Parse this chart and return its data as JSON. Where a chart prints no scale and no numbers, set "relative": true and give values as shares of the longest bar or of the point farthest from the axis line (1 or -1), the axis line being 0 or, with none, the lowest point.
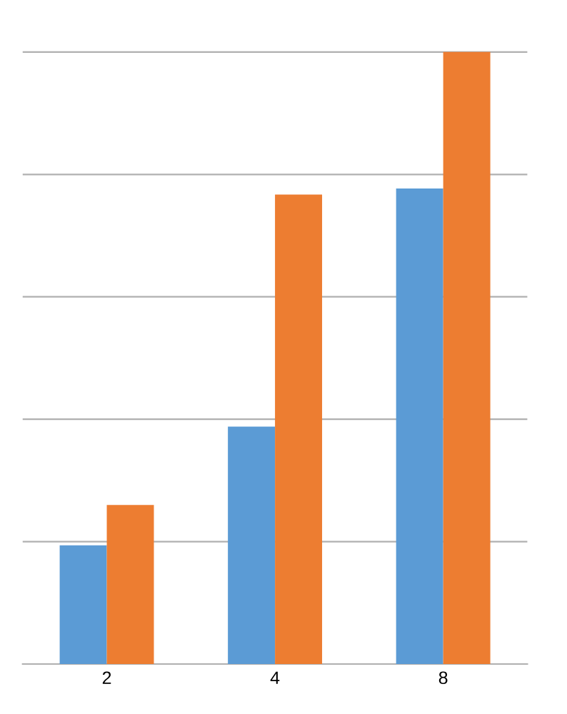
{
  "chart_data": {
    "type": "bar",
    "relative": true,
    "categories": [
      "2",
      "4",
      "8"
    ],
    "series": [
      {
        "color": "#5b9bd5",
        "values": [
          0.194,
          0.388,
          0.777
        ]
      },
      {
        "color": "#ed7d31",
        "values": [
          0.26,
          0.767,
          1
        ]
      }
    ],
    "grid": "y",
    "legend": false
  }
}
